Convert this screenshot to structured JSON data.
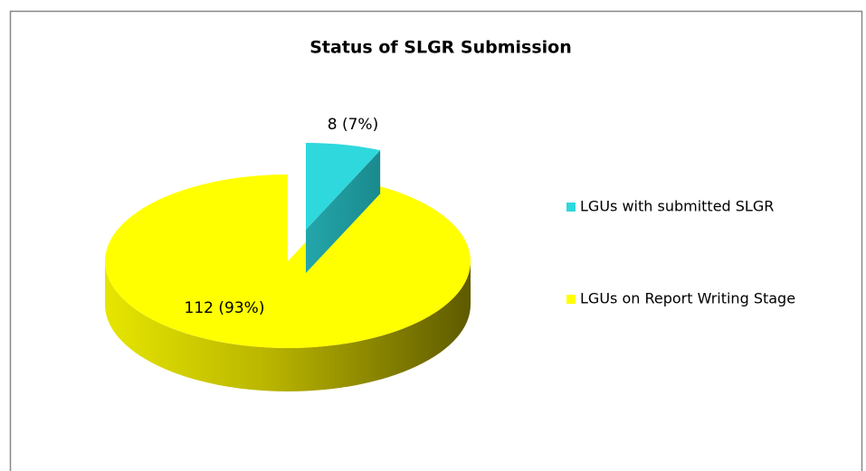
{
  "chart_data": {
    "type": "pie3d",
    "title": "Status of SLGR Submission",
    "categories": [
      "LGUs with submitted SLGR",
      "LGUs on Report Writing Stage"
    ],
    "values": [
      8,
      112
    ],
    "value_labels": [
      "8 (7%)",
      "112 (93%)"
    ],
    "colors": [
      "#2fd8dc",
      "#ffff00"
    ],
    "legend": "right"
  }
}
